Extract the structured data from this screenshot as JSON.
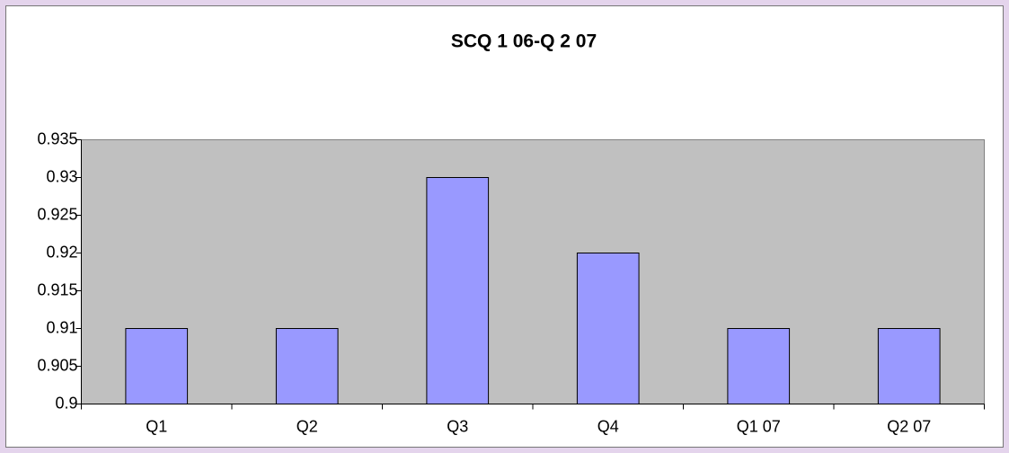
{
  "chart_data": {
    "type": "bar",
    "title": "SCQ 1 06-Q 2 07",
    "categories": [
      "Q1",
      "Q2",
      "Q3",
      "Q4",
      "Q1 07",
      "Q2 07"
    ],
    "values": [
      0.91,
      0.91,
      0.93,
      0.92,
      0.91,
      0.91
    ],
    "color": "#9999ff",
    "ylim": [
      0.9,
      0.935
    ],
    "yticks": [
      0.9,
      0.905,
      0.91,
      0.915,
      0.92,
      0.925,
      0.93,
      0.935
    ],
    "grid": false
  }
}
